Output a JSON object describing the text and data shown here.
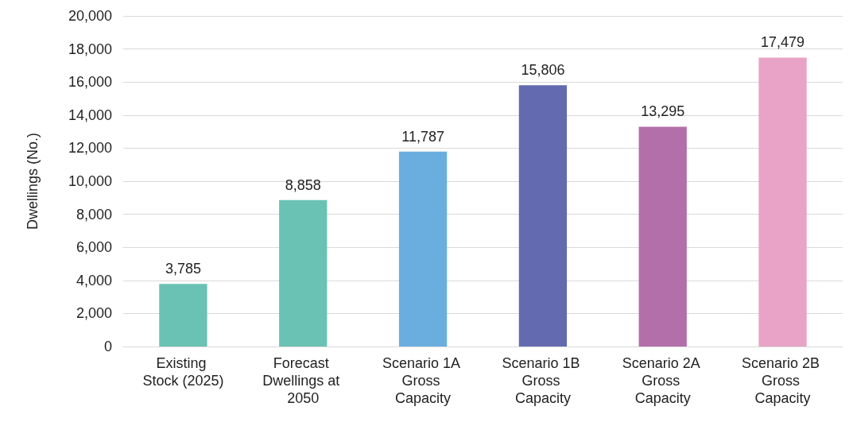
{
  "chart_data": {
    "type": "bar",
    "ylabel": "Dwellings (No.)",
    "categories": [
      "Existing Stock (2025)",
      "Forecast Dwellings at 2050",
      "Scenario 1A Gross Capacity",
      "Scenario 1B Gross Capacity",
      "Scenario 2A Gross Capacity",
      "Scenario 2B Gross Capacity"
    ],
    "values": [
      3785,
      8858,
      11787,
      15806,
      13295,
      17479
    ],
    "value_labels": [
      "3,785",
      "8,858",
      "11,787",
      "15,806",
      "13,295",
      "17,479"
    ],
    "colors": [
      "#6ac2b4",
      "#6ac2b4",
      "#6aaee0",
      "#636ab0",
      "#b36faa",
      "#e8a3c6"
    ],
    "ylim": [
      0,
      20000
    ],
    "yticks": [
      0,
      {
        "value": 2000,
        "label": "2,000"
      },
      {
        "value": 4000,
        "label": "4,000"
      },
      {
        "value": 6000,
        "label": "6,000"
      },
      {
        "value": 8000,
        "label": "8,000"
      },
      {
        "value": 10000,
        "label": "10,000"
      },
      {
        "value": 12000,
        "label": "12,000"
      },
      {
        "value": 14000,
        "label": "14,000"
      },
      {
        "value": 16000,
        "label": "16,000"
      },
      {
        "value": 18000,
        "label": "18,000"
      },
      {
        "value": 20000,
        "label": "20,000"
      }
    ],
    "grid": "y"
  }
}
